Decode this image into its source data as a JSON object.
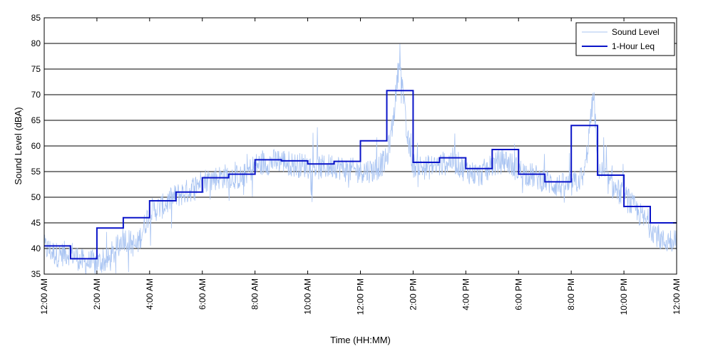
{
  "chart_data": {
    "type": "line",
    "title": "",
    "xlabel": "Time (HH:MM)",
    "ylabel": "Sound Level (dBA)",
    "ylim": [
      35,
      85
    ],
    "xlim": [
      0,
      24
    ],
    "x_unit": "hours since 12:00 AM",
    "yticks": [
      35,
      40,
      45,
      50,
      55,
      60,
      65,
      70,
      75,
      80,
      85
    ],
    "xticks": [
      {
        "x": 0,
        "label": "12:00 AM"
      },
      {
        "x": 2,
        "label": "2:00 AM"
      },
      {
        "x": 4,
        "label": "4:00 AM"
      },
      {
        "x": 6,
        "label": "6:00 AM"
      },
      {
        "x": 8,
        "label": "8:00 AM"
      },
      {
        "x": 10,
        "label": "10:00 AM"
      },
      {
        "x": 12,
        "label": "12:00 PM"
      },
      {
        "x": 14,
        "label": "2:00 PM"
      },
      {
        "x": 16,
        "label": "4:00 PM"
      },
      {
        "x": 18,
        "label": "6:00 PM"
      },
      {
        "x": 20,
        "label": "8:00 PM"
      },
      {
        "x": 22,
        "label": "10:00 PM"
      },
      {
        "x": 24,
        "label": "12:00 AM"
      }
    ],
    "grid": "horizontal",
    "legend_position": "top-right",
    "series": [
      {
        "name": "Sound Level",
        "color": "#a9c4f2",
        "style": "thin-noisy",
        "x": [
          0,
          0.5,
          1,
          1.5,
          2,
          2.5,
          3,
          3.5,
          4,
          4.5,
          5,
          5.5,
          6,
          6.5,
          7,
          7.5,
          8,
          8.5,
          9,
          9.5,
          10,
          10.5,
          11,
          11.5,
          12,
          12.5,
          13,
          13.25,
          13.5,
          13.75,
          14,
          14.5,
          15,
          15.5,
          16,
          16.5,
          17,
          17.5,
          18,
          18.5,
          19,
          19.5,
          20,
          20.5,
          20.85,
          21,
          21.5,
          22,
          22.5,
          23,
          23.5,
          24
        ],
        "y": [
          40,
          38.5,
          39,
          37,
          37,
          37.5,
          42,
          40,
          47,
          48,
          50,
          51,
          53,
          53.5,
          54,
          53.5,
          56,
          56.5,
          57,
          56,
          56,
          55.5,
          56,
          55,
          55,
          55,
          57,
          65,
          78,
          62,
          56,
          55.5,
          56,
          57,
          55,
          54,
          56,
          57,
          55,
          54,
          53,
          52,
          52,
          54,
          70,
          56,
          52,
          50,
          47,
          44,
          41,
          42
        ]
      },
      {
        "name": "1-Hour Leq",
        "color": "#0a14c8",
        "style": "step",
        "values": [
          40.5,
          38,
          44,
          46,
          49.3,
          51,
          53.8,
          54.5,
          57.3,
          57.1,
          56.5,
          57,
          61,
          70.8,
          56.8,
          57.7,
          55.6,
          59.3,
          54.5,
          53,
          64,
          54.3,
          48.2,
          45
        ]
      }
    ]
  }
}
